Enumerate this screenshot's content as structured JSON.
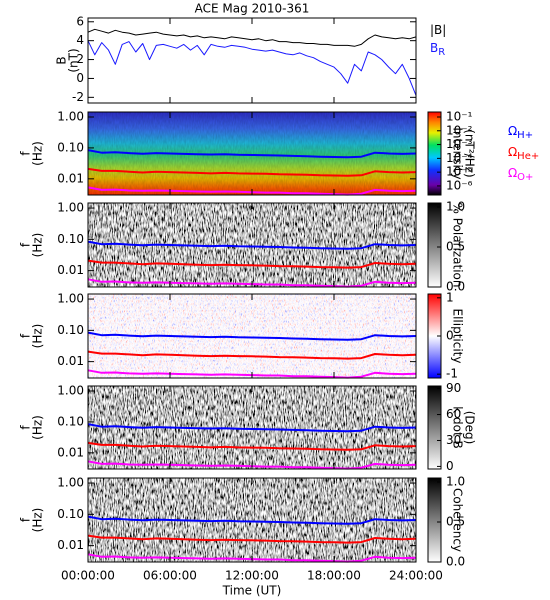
{
  "chart_data": [
    {
      "type": "line",
      "title": "ACE Mag 2010-361",
      "ylabel": [
        "B",
        "(nT)"
      ],
      "ylim": [
        -2.6,
        6.4
      ],
      "yticks": [
        -2,
        0,
        2,
        4,
        6
      ],
      "x": [
        0,
        0.5,
        1,
        1.5,
        2,
        2.5,
        3,
        3.5,
        4,
        4.5,
        5,
        5.5,
        6,
        6.5,
        7,
        7.5,
        8,
        8.5,
        9,
        9.5,
        10,
        10.5,
        11,
        11.5,
        12,
        12.5,
        13,
        13.5,
        14,
        14.5,
        15,
        15.5,
        16,
        16.5,
        17,
        17.5,
        18,
        18.5,
        19,
        19.5,
        20,
        20.5,
        21,
        21.5,
        22,
        22.5,
        23,
        23.5,
        24
      ],
      "series": [
        {
          "name": "|B|",
          "color": "#000000",
          "values": [
            4.9,
            5.2,
            5.0,
            4.8,
            5.1,
            4.9,
            4.8,
            4.6,
            4.7,
            4.8,
            4.9,
            4.7,
            4.6,
            4.5,
            4.6,
            4.4,
            4.5,
            4.3,
            4.4,
            4.3,
            4.2,
            4.4,
            4.3,
            4.2,
            4.1,
            4.2,
            4.0,
            4.1,
            3.9,
            3.9,
            3.8,
            3.8,
            3.7,
            3.7,
            3.6,
            3.6,
            3.5,
            3.5,
            3.5,
            3.4,
            3.6,
            4.2,
            4.6,
            4.4,
            4.3,
            4.2,
            4.3,
            4.2,
            4.4
          ]
        },
        {
          "name": "B",
          "subscript": "R",
          "color": "#1a1aff",
          "values": [
            4.0,
            2.5,
            3.8,
            3.0,
            1.5,
            3.6,
            3.9,
            2.8,
            3.7,
            2.0,
            3.5,
            3.6,
            3.4,
            3.2,
            3.6,
            3.0,
            3.5,
            2.5,
            3.6,
            3.4,
            3.3,
            3.5,
            3.4,
            3.3,
            3.1,
            3.0,
            2.9,
            3.0,
            2.8,
            2.6,
            2.5,
            2.7,
            2.4,
            2.2,
            1.8,
            1.5,
            1.2,
            0.5,
            -0.5,
            1.5,
            0.8,
            2.8,
            2.5,
            2.0,
            1.2,
            0.5,
            1.5,
            0.0,
            -1.8
          ]
        }
      ]
    },
    {
      "type": "spectrogram",
      "ylabel": [
        "f",
        "(Hz)"
      ],
      "yscale": "log",
      "ylim": [
        0.003,
        1.45
      ],
      "yticks": [
        {
          "value": 1,
          "label": "1.00"
        },
        {
          "value": 0.1,
          "label": "0.10"
        },
        {
          "value": 0.01,
          "label": "0.01"
        }
      ],
      "colormap": "rainbow",
      "colorbar": {
        "label": [
          "Intensity",
          "(nT²/Hz)"
        ],
        "scale": "log",
        "lim": [
          2.2e-07,
          0.23
        ],
        "ticks": [
          {
            "value": 0.1,
            "label": "10⁻¹"
          },
          {
            "value": 0.01,
            "label": "10⁻²"
          },
          {
            "value": 0.001,
            "label": "10⁻³"
          },
          {
            "value": 0.0001,
            "label": "10⁻⁴"
          },
          {
            "value": 1e-05,
            "label": "10⁻⁵"
          },
          {
            "value": 1e-06,
            "label": "10⁻⁶"
          }
        ]
      },
      "x": [
        0,
        1,
        2,
        3,
        4,
        5,
        6,
        7,
        8,
        9,
        10,
        11,
        12,
        13,
        14,
        15,
        16,
        17,
        18,
        19,
        20,
        21,
        22,
        23,
        24
      ],
      "series": [
        {
          "name": "Ω",
          "subscript": "H+",
          "color": "#0000ff",
          "values": [
            0.085,
            0.07,
            0.072,
            0.068,
            0.065,
            0.068,
            0.066,
            0.064,
            0.062,
            0.061,
            0.062,
            0.06,
            0.059,
            0.058,
            0.057,
            0.055,
            0.054,
            0.052,
            0.051,
            0.05,
            0.052,
            0.07,
            0.066,
            0.064,
            0.066
          ]
        },
        {
          "name": "Ω",
          "subscript": "He+",
          "color": "#ff0000",
          "values": [
            0.021,
            0.018,
            0.018,
            0.017,
            0.016,
            0.017,
            0.0165,
            0.016,
            0.0155,
            0.015,
            0.0155,
            0.015,
            0.0148,
            0.0145,
            0.014,
            0.0138,
            0.0135,
            0.013,
            0.0128,
            0.0125,
            0.013,
            0.0175,
            0.0165,
            0.016,
            0.0165
          ]
        },
        {
          "name": "Ω",
          "subscript": "O+",
          "color": "#ff00ff",
          "values": [
            0.0053,
            0.0044,
            0.0045,
            0.0042,
            0.0041,
            0.0042,
            0.0041,
            0.004,
            0.0039,
            0.0038,
            0.0039,
            0.0038,
            0.0037,
            0.0036,
            0.0036,
            0.0034,
            0.0034,
            0.0033,
            0.0032,
            0.0031,
            0.0033,
            0.0044,
            0.0041,
            0.004,
            0.0041
          ]
        }
      ]
    },
    {
      "type": "spectrogram",
      "ylabel": [
        "f",
        "(Hz)"
      ],
      "yscale": "log",
      "ylim": [
        0.003,
        1.45
      ],
      "yticks": [
        {
          "value": 1,
          "label": "1.00"
        },
        {
          "value": 0.1,
          "label": "0.10"
        },
        {
          "value": 0.01,
          "label": "0.01"
        }
      ],
      "colormap": "gray",
      "colorbar": {
        "label": [
          "% Polarization"
        ],
        "scale": "linear",
        "lim": [
          0,
          1.05
        ],
        "ticks": [
          {
            "value": 1,
            "label": "1.0"
          },
          {
            "value": 0.5,
            "label": "0.5"
          },
          {
            "value": 0,
            "label": "0.0"
          }
        ]
      }
    },
    {
      "type": "spectrogram",
      "ylabel": [
        "f",
        "(Hz)"
      ],
      "yscale": "log",
      "ylim": [
        0.003,
        1.45
      ],
      "yticks": [
        {
          "value": 1,
          "label": "1.00"
        },
        {
          "value": 0.1,
          "label": "0.10"
        },
        {
          "value": 0.01,
          "label": "0.01"
        }
      ],
      "colormap": "bwr",
      "colorbar": {
        "label": [
          "Ellipticity"
        ],
        "scale": "linear",
        "lim": [
          -1.1,
          1.1
        ],
        "ticks": [
          1,
          0,
          -1
        ]
      }
    },
    {
      "type": "spectrogram",
      "ylabel": [
        "f",
        "(Hz)"
      ],
      "yscale": "log",
      "ylim": [
        0.003,
        1.45
      ],
      "yticks": [
        {
          "value": 1,
          "label": "1.00"
        },
        {
          "value": 0.1,
          "label": "0.10"
        },
        {
          "value": 0.01,
          "label": "0.01"
        }
      ],
      "colormap": "gray",
      "colorbar": {
        "label": [
          "k dot B",
          "(Deg)"
        ],
        "scale": "linear",
        "lim": [
          -3,
          93
        ],
        "ticks": [
          90,
          60,
          30,
          0
        ]
      }
    },
    {
      "type": "spectrogram",
      "ylabel": [
        "f",
        "(Hz)"
      ],
      "yscale": "log",
      "ylim": [
        0.003,
        1.45
      ],
      "yticks": [
        {
          "value": 1,
          "label": "1.00"
        },
        {
          "value": 0.1,
          "label": "0.10"
        },
        {
          "value": 0.01,
          "label": "0.01"
        }
      ],
      "colormap": "gray",
      "colorbar": {
        "label": [
          "Coherency"
        ],
        "scale": "linear",
        "lim": [
          0,
          1.05
        ],
        "ticks": [
          {
            "value": 1,
            "label": "1.0"
          },
          {
            "value": 0.5,
            "label": "0.5"
          },
          {
            "value": 0,
            "label": "0.0"
          }
        ]
      },
      "xlabel": "Time (UT)",
      "xlim": [
        0,
        24
      ],
      "xticks": [
        {
          "value": 0,
          "label": "00:00:00"
        },
        {
          "value": 6,
          "label": "06:00:00"
        },
        {
          "value": 12,
          "label": "12:00:00"
        },
        {
          "value": 18,
          "label": "18:00:00"
        },
        {
          "value": 24,
          "label": "24:00:00"
        }
      ]
    }
  ]
}
